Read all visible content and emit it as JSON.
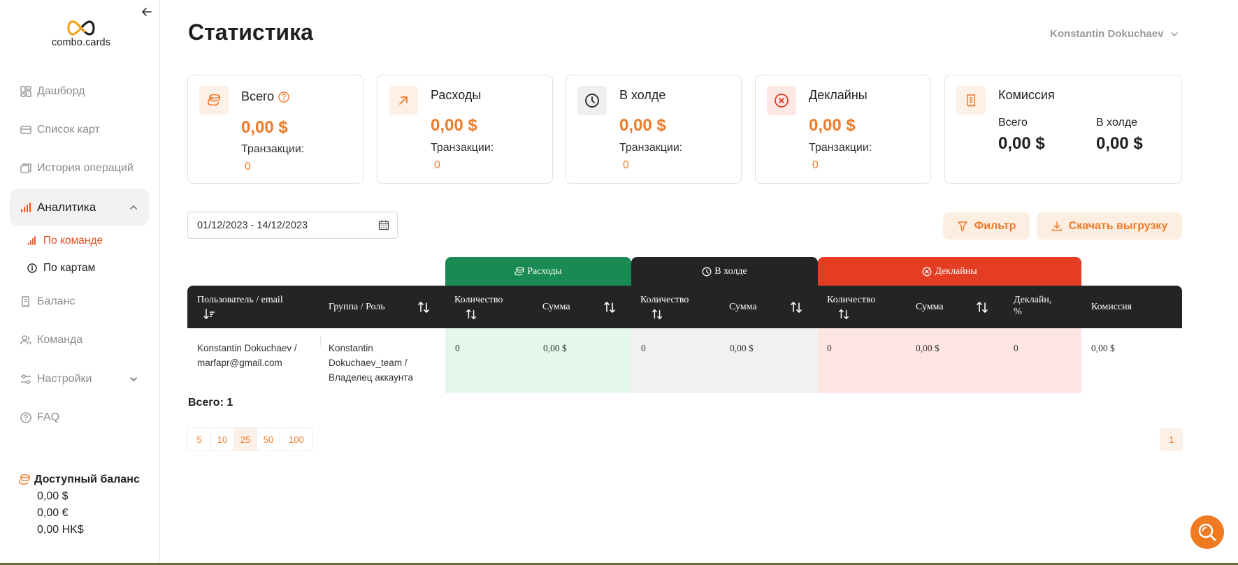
{
  "sidebar": {
    "logo_text": "combo.cards",
    "items": [
      {
        "label": "Дашборд",
        "icon": "dashboard-icon"
      },
      {
        "label": "Список карт",
        "icon": "card-icon"
      },
      {
        "label": "История операций",
        "icon": "history-icon"
      },
      {
        "label": "Аналитика",
        "icon": "analytics-icon"
      },
      {
        "label": "Баланс",
        "icon": "balance-icon"
      },
      {
        "label": "Команда",
        "icon": "team-icon"
      },
      {
        "label": "Настройки",
        "icon": "settings-icon"
      },
      {
        "label": "FAQ",
        "icon": "faq-icon"
      }
    ],
    "sub_items": [
      {
        "label": "По команде",
        "icon": "bar-chart-icon"
      },
      {
        "label": "По картам",
        "icon": "info-icon"
      }
    ],
    "balance": {
      "title": "Доступный баланс",
      "values": [
        "0,00 $",
        "0,00 €",
        "0,00 HK$"
      ]
    }
  },
  "header": {
    "title": "Статистика",
    "user": "Konstantin Dokuchaev"
  },
  "cards": [
    {
      "title": "Всего",
      "amount": "0,00 $",
      "tx_label": "Транзакции:",
      "tx_value": "0"
    },
    {
      "title": "Расходы",
      "amount": "0,00 $",
      "tx_label": "Транзакции:",
      "tx_value": "0"
    },
    {
      "title": "В холде",
      "amount": "0,00 $",
      "tx_label": "Транзакции:",
      "tx_value": "0"
    },
    {
      "title": "Деклайны",
      "amount": "0,00 $",
      "tx_label": "Транзакции:",
      "tx_value": "0"
    },
    {
      "title": "Комиссия",
      "sub1_label": "Всего",
      "sub1_value": "0,00 $",
      "sub2_label": "В холде",
      "sub2_value": "0,00 $"
    }
  ],
  "controls": {
    "date_range": "01/12/2023 - 14/12/2023",
    "filter": "Фильтр",
    "download": "Скачать выгрузку"
  },
  "table": {
    "groups": [
      {
        "label": "Расходы",
        "color": "#1a8a55"
      },
      {
        "label": "В холде",
        "color": "#222426"
      },
      {
        "label": "Деклайны",
        "color": "#e43d24"
      }
    ],
    "columns": {
      "user": "Пользователь / email",
      "group": "Группа / Роль",
      "qty": "Количество",
      "sum": "Сумма",
      "decline_pct": "Деклайн, %",
      "commission": "Комиссия"
    },
    "row": {
      "user": "Konstantin Dokuchaev / marfapr@gmail.com",
      "group": "Konstantin Dokuchaev_team / Владелец аккаунта",
      "exp_qty": "0",
      "exp_sum": "0,00 $",
      "hold_qty": "0",
      "hold_sum": "0,00 $",
      "dec_qty": "0",
      "dec_sum": "0,00 $",
      "dec_pct": "0",
      "commission": "0,00 $"
    },
    "total": "Всего: 1"
  },
  "pagination": {
    "sizes": [
      "5",
      "10",
      "25",
      "50",
      "100"
    ],
    "selected_size": "25",
    "current_page": "1"
  },
  "colors": {
    "accent": "#ef7a28",
    "green_bg": "#e3f7ec",
    "grey_bg": "#f1f1f1",
    "pink_bg": "#fde6e2"
  }
}
